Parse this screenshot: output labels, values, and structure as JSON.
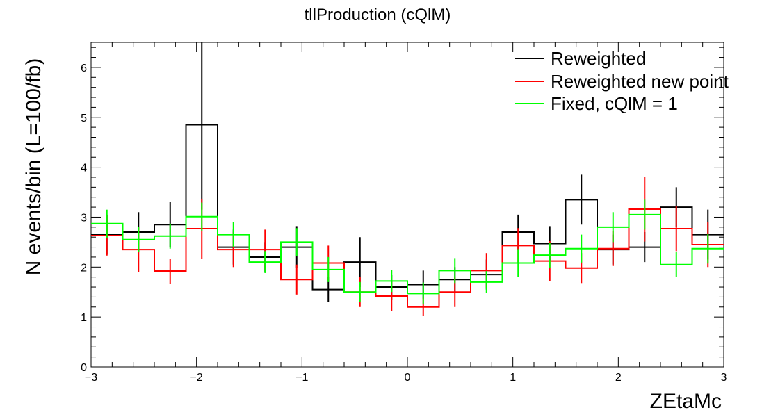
{
  "chart_data": {
    "type": "histogram-step",
    "title": "tllProduction (cQlM)",
    "xlabel": "ZEtaMc",
    "ylabel": "N events/bin (L=100/fb)",
    "xlim": [
      -3,
      3
    ],
    "ylim": [
      0,
      6.5
    ],
    "xticks": [
      -3,
      -2,
      -1,
      0,
      1,
      2,
      3
    ],
    "xtick_labels": [
      "−3",
      "−2",
      "−1",
      "0",
      "1",
      "2",
      "3"
    ],
    "yticks": [
      0,
      1,
      2,
      3,
      4,
      5,
      6
    ],
    "ytick_labels": [
      "0",
      "1",
      "2",
      "3",
      "4",
      "5",
      "6"
    ],
    "bin_edges": [
      -3.0,
      -2.7,
      -2.4,
      -2.1,
      -1.8,
      -1.5,
      -1.2,
      -0.9,
      -0.6,
      -0.3,
      0.0,
      0.3,
      0.6,
      0.9,
      1.2,
      1.5,
      1.8,
      2.1,
      2.4,
      2.7,
      3.0
    ],
    "legend_position": "top-right",
    "grid": false,
    "series": [
      {
        "name": "Reweighted",
        "color": "#000000",
        "values": [
          2.65,
          2.7,
          2.85,
          4.85,
          2.4,
          2.2,
          2.4,
          1.55,
          2.1,
          1.6,
          1.65,
          1.75,
          1.85,
          2.7,
          2.47,
          3.35,
          2.35,
          2.4,
          3.2,
          2.65
        ],
        "errors": [
          0.4,
          0.4,
          0.45,
          1.7,
          0.35,
          0.3,
          0.42,
          0.25,
          0.5,
          0.25,
          0.28,
          0.25,
          0.3,
          0.35,
          0.35,
          0.5,
          0.3,
          0.3,
          0.4,
          0.5
        ]
      },
      {
        "name": "Reweighted new point",
        "color": "#ff0000",
        "values": [
          2.63,
          2.35,
          1.92,
          2.77,
          2.35,
          2.35,
          1.75,
          2.08,
          1.5,
          1.42,
          1.2,
          1.5,
          1.93,
          2.43,
          2.12,
          1.98,
          2.37,
          3.16,
          2.77,
          2.45
        ],
        "errors": [
          0.4,
          0.45,
          0.25,
          0.6,
          0.35,
          0.4,
          0.3,
          0.35,
          0.3,
          0.3,
          0.18,
          0.3,
          0.35,
          0.35,
          0.4,
          0.3,
          0.35,
          0.65,
          0.45,
          0.45
        ]
      },
      {
        "name": "Fixed, cQlM = 1",
        "color": "#00ff00",
        "values": [
          2.87,
          2.55,
          2.62,
          3.01,
          2.65,
          2.1,
          2.5,
          1.95,
          1.5,
          1.72,
          1.47,
          1.93,
          1.7,
          2.08,
          2.24,
          2.37,
          2.8,
          3.05,
          2.05,
          2.37
        ],
        "errors": [
          0.28,
          0.25,
          0.25,
          0.28,
          0.25,
          0.22,
          0.28,
          0.25,
          0.2,
          0.22,
          0.22,
          0.25,
          0.22,
          0.28,
          0.25,
          0.28,
          0.3,
          0.3,
          0.25,
          0.3
        ]
      }
    ]
  }
}
